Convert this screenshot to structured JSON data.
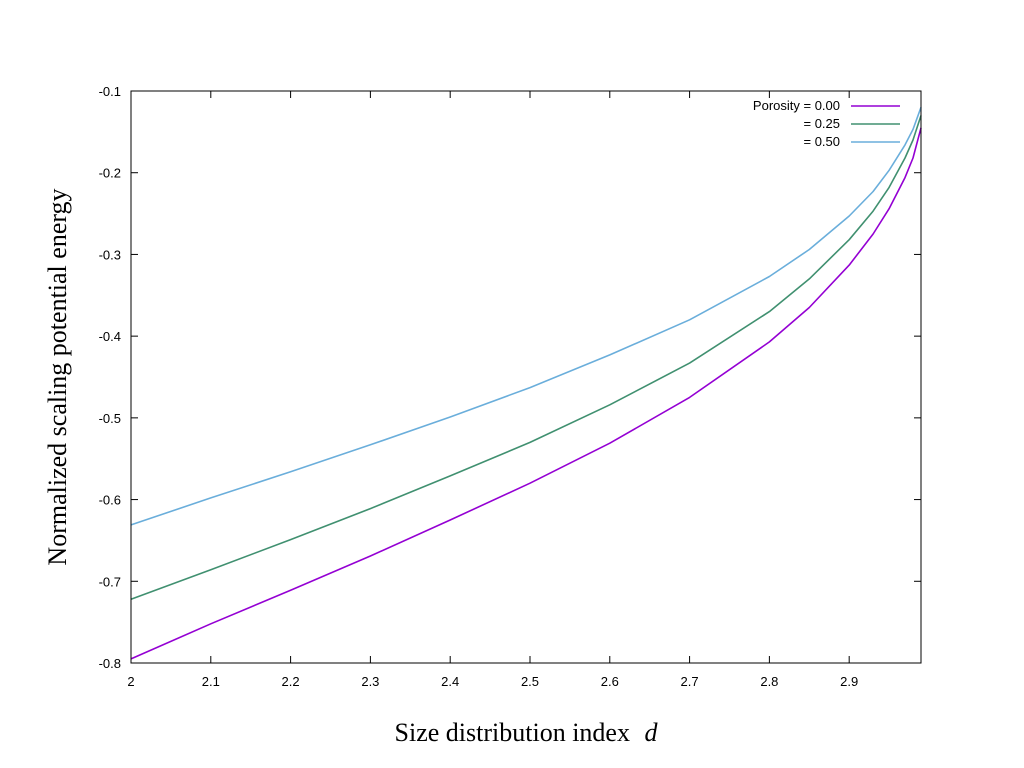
{
  "chart_data": {
    "type": "line",
    "xlabel": "Size distribution index",
    "xlabel_var": "d",
    "ylabel": "Normalized scaling potential energy",
    "xlim": [
      2.0,
      2.99
    ],
    "ylim": [
      -0.8,
      -0.1
    ],
    "x_ticks": [
      "2",
      "2.1",
      "2.2",
      "2.3",
      "2.4",
      "2.5",
      "2.6",
      "2.7",
      "2.8",
      "2.9"
    ],
    "y_ticks": [
      "-0.1",
      "-0.2",
      "-0.3",
      "-0.4",
      "-0.5",
      "-0.6",
      "-0.7",
      "-0.8"
    ],
    "grid": false,
    "legend_position": "top-right",
    "x": [
      2.0,
      2.1,
      2.2,
      2.3,
      2.4,
      2.5,
      2.6,
      2.7,
      2.8,
      2.85,
      2.9,
      2.93,
      2.95,
      2.97,
      2.98,
      2.99
    ],
    "series": [
      {
        "name": "Porosity = 0.00",
        "color": "#9400d3",
        "values": [
          -0.795,
          -0.752,
          -0.711,
          -0.669,
          -0.625,
          -0.58,
          -0.531,
          -0.475,
          -0.407,
          -0.365,
          -0.313,
          -0.275,
          -0.244,
          -0.206,
          -0.182,
          -0.145
        ]
      },
      {
        "name": "= 0.25",
        "color": "#409070",
        "values": [
          -0.722,
          -0.686,
          -0.649,
          -0.611,
          -0.571,
          -0.53,
          -0.484,
          -0.433,
          -0.37,
          -0.33,
          -0.282,
          -0.247,
          -0.218,
          -0.182,
          -0.16,
          -0.13
        ]
      },
      {
        "name": "= 0.50",
        "color": "#6aaedb",
        "values": [
          -0.631,
          -0.598,
          -0.566,
          -0.533,
          -0.499,
          -0.463,
          -0.423,
          -0.38,
          -0.327,
          -0.294,
          -0.253,
          -0.223,
          -0.197,
          -0.166,
          -0.147,
          -0.12
        ]
      }
    ]
  }
}
